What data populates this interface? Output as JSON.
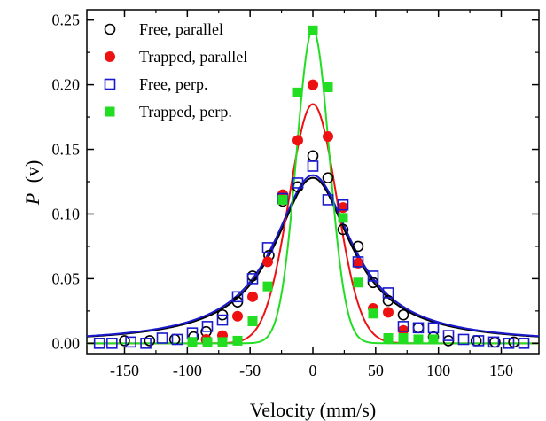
{
  "chart_data": {
    "type": "scatter",
    "xlabel": "Velocity (mm/s)",
    "ylabel_main": "P",
    "ylabel_arg": "(v)",
    "xlim": [
      -180,
      180
    ],
    "ylim": [
      -0.008,
      0.258
    ],
    "xticks": [
      -150,
      -100,
      -50,
      0,
      50,
      100,
      150
    ],
    "xtick_labels": [
      "-150",
      "-100",
      "-50",
      "0",
      "50",
      "100",
      "150"
    ],
    "yticks": [
      0.0,
      0.05,
      0.1,
      0.15,
      0.2,
      0.25
    ],
    "ytick_labels": [
      "0.00",
      "0.05",
      "0.10",
      "0.15",
      "0.20",
      "0.25"
    ],
    "grid": false,
    "legend_position": "top-left",
    "series": [
      {
        "name": "Free, parallel",
        "marker": "open-circle",
        "color": "#000000",
        "x": [
          -150,
          -130,
          -110,
          -95,
          -85,
          -72,
          -60,
          -48,
          -35,
          -24,
          -12,
          0,
          12,
          24,
          36,
          48,
          60,
          72,
          84,
          96,
          108,
          130,
          145,
          160
        ],
        "y": [
          0.002,
          0.002,
          0.003,
          0.005,
          0.009,
          0.022,
          0.032,
          0.052,
          0.068,
          0.11,
          0.121,
          0.145,
          0.128,
          0.088,
          0.075,
          0.047,
          0.033,
          0.022,
          0.012,
          0.005,
          0.002,
          0.002,
          0.001,
          0.001
        ],
        "fit": {
          "amplitude": 0.128,
          "center": 0,
          "gamma": 37
        }
      },
      {
        "name": "Trapped, parallel",
        "marker": "filled-circle",
        "color": "#ee1111",
        "x": [
          -85,
          -72,
          -60,
          -48,
          -36,
          -24,
          -12,
          0,
          12,
          24,
          36,
          48,
          60,
          72
        ],
        "y": [
          0.003,
          0.006,
          0.021,
          0.036,
          0.063,
          0.115,
          0.157,
          0.2,
          0.16,
          0.105,
          0.062,
          0.027,
          0.024,
          0.01
        ],
        "fit": {
          "amplitude": 0.185,
          "center": 0,
          "sigma": 19
        }
      },
      {
        "name": "Free, perp.",
        "marker": "open-square",
        "color": "#1a1acc",
        "x": [
          -170,
          -160,
          -145,
          -133,
          -120,
          -108,
          -96,
          -84,
          -72,
          -60,
          -48,
          -36,
          -24,
          -12,
          0,
          12,
          24,
          36,
          48,
          60,
          72,
          84,
          96,
          108,
          120,
          132,
          144,
          156,
          168
        ],
        "y": [
          0.0,
          0.0,
          0.001,
          0.0,
          0.004,
          0.003,
          0.008,
          0.013,
          0.018,
          0.036,
          0.05,
          0.074,
          0.112,
          0.124,
          0.137,
          0.111,
          0.107,
          0.063,
          0.052,
          0.039,
          0.013,
          0.012,
          0.012,
          0.006,
          0.003,
          0.002,
          0.001,
          0.0,
          0.0
        ],
        "fit": {
          "amplitude": 0.13,
          "center": 0,
          "gamma": 38
        }
      },
      {
        "name": "Trapped, perp.",
        "marker": "filled-square",
        "color": "#22dd22",
        "x": [
          -96,
          -84,
          -72,
          -60,
          -48,
          -36,
          -24,
          -12,
          0,
          12,
          24,
          36,
          48,
          60,
          72,
          84,
          96
        ],
        "y": [
          0.001,
          0.001,
          0.001,
          0.002,
          0.017,
          0.044,
          0.111,
          0.194,
          0.242,
          0.198,
          0.097,
          0.047,
          0.023,
          0.004,
          0.004,
          0.003,
          0.003
        ],
        "fit": {
          "amplitude": 0.243,
          "center": 0,
          "sigma": 13
        }
      }
    ]
  }
}
